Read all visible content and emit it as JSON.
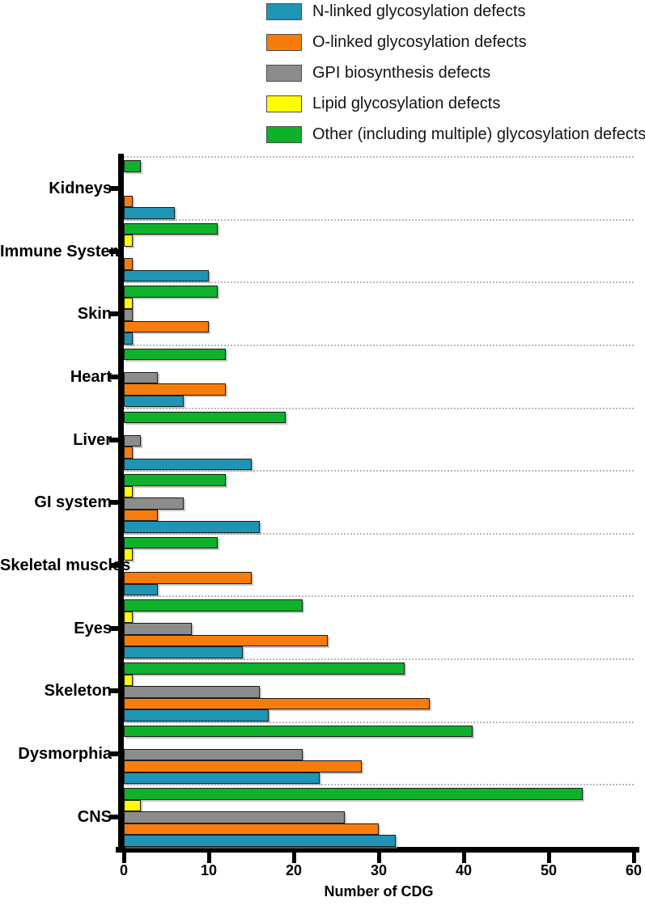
{
  "chart_data": {
    "type": "bar",
    "orientation": "horizontal",
    "xlabel": "Number of CDG",
    "xlim": [
      0,
      60
    ],
    "xticks": [
      0,
      10,
      20,
      30,
      40,
      50,
      60
    ],
    "grid": "dotted horizontal separators between category groups",
    "legend_position": "top",
    "categories_top_to_bottom": [
      "Kidneys",
      "Immune System",
      "Skin",
      "Heart",
      "Liver",
      "GI system",
      "Skeletal muscles",
      "Eyes",
      "Skeleton",
      "Dysmorphia",
      "CNS"
    ],
    "series": [
      {
        "name": "N-linked glycosylation defects",
        "color": "#1E95B4",
        "values": [
          6,
          10,
          1,
          7,
          15,
          16,
          4,
          14,
          17,
          23,
          32
        ]
      },
      {
        "name": "O-linked glycosylation defects",
        "color": "#F87C0B",
        "values": [
          1,
          1,
          10,
          12,
          1,
          4,
          15,
          24,
          36,
          28,
          30
        ]
      },
      {
        "name": "GPI biosynthesis defects",
        "color": "#8C8C8C",
        "values": [
          0,
          0,
          1,
          4,
          2,
          7,
          0,
          8,
          16,
          21,
          26
        ]
      },
      {
        "name": "Lipid glycosylation defects",
        "color": "#FDFD00",
        "values": [
          0,
          1,
          1,
          0,
          0,
          1,
          1,
          1,
          1,
          0,
          2
        ]
      },
      {
        "name": "Other (including multiple) glycosylation defects",
        "color": "#0DB22A",
        "values": [
          2,
          11,
          11,
          12,
          19,
          12,
          11,
          21,
          33,
          41,
          54
        ]
      }
    ],
    "bar_order_within_group_top_to_bottom": [
      "Other (including multiple) glycosylation defects",
      "Lipid glycosylation defects",
      "GPI biosynthesis defects",
      "O-linked glycosylation defects",
      "N-linked glycosylation defects"
    ],
    "note_zero_values_not_drawn": true
  }
}
